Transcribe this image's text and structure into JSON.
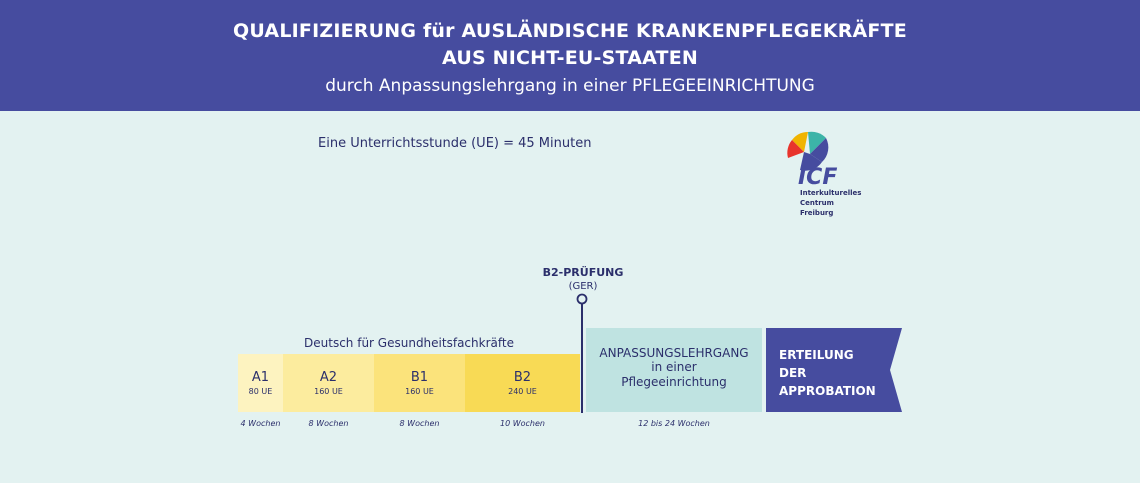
{
  "header": {
    "title_line1": "QUALIFIZIERUNG für AUSLÄNDISCHE KRANKENPFLEGEKRÄFTE",
    "title_line2": "AUS NICHT-EU-STAATEN",
    "subtitle": "durch Anpassungslehrgang in einer PFLEGEEINRICHTUNG"
  },
  "unit_note": "Eine Unterrichtsstunde (UE) = 45 Minuten",
  "logo": {
    "letters": "ICF",
    "line1": "Interkulturelles",
    "line2": "Centrum",
    "line3": "Freiburg"
  },
  "exam": {
    "label": "B2-PRÜFUNG",
    "sub": "(GER)"
  },
  "german_course": {
    "title": "Deutsch für Gesundheitsfachkräfte",
    "levels": [
      {
        "code": "A1",
        "ue": "80 UE",
        "duration": "4 Wochen",
        "color": "#fdf3c0"
      },
      {
        "code": "A2",
        "ue": "160 UE",
        "duration": "8 Wochen",
        "color": "#fcec9e"
      },
      {
        "code": "B1",
        "ue": "160 UE",
        "duration": "8 Wochen",
        "color": "#fbe37b"
      },
      {
        "code": "B2",
        "ue": "240 UE",
        "duration": "10 Wochen",
        "color": "#f8da55"
      }
    ]
  },
  "adaptation": {
    "line1": "ANPASSUNGSLEHRGANG",
    "line2": "in einer",
    "line3": "Pflegeeinrichtung",
    "duration": "12 bis 24 Wochen",
    "color": "#bfe3e1"
  },
  "approbation": {
    "line1": "ERTEILUNG",
    "line2": "DER",
    "line3": "APPROBATION",
    "color": "#464c9f"
  },
  "colors": {
    "header_bg": "#464c9f",
    "page_bg": "#e3f2f1",
    "text": "#2b2f6b"
  }
}
